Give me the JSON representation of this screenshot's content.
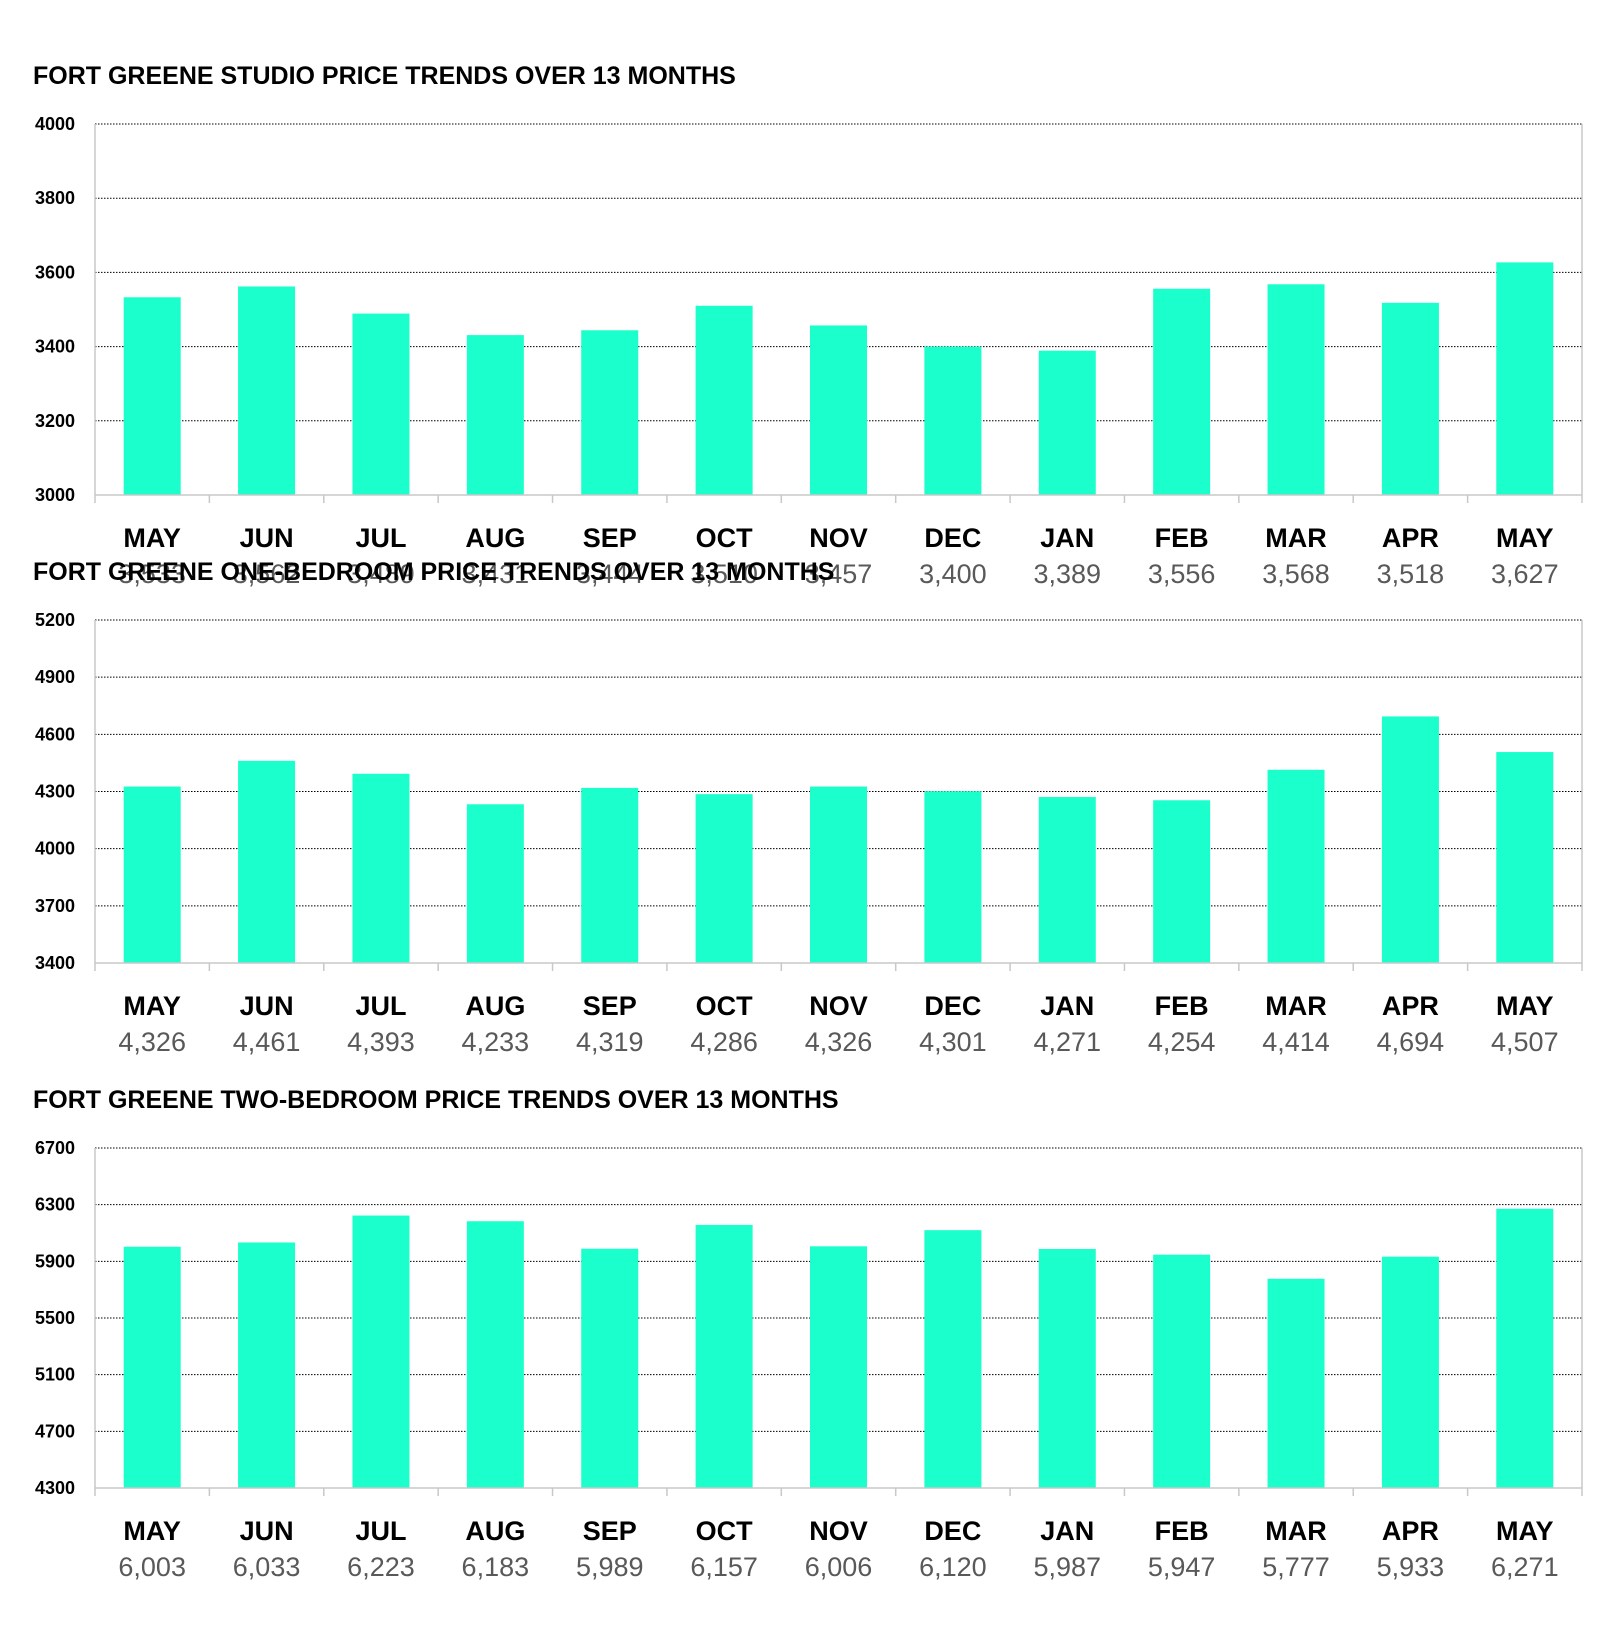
{
  "colors": {
    "bar": "#1affcc",
    "grid": "#000000",
    "axis": "#c8c8c8",
    "text": "#000000",
    "value_text": "#595959"
  },
  "chart_data": [
    {
      "type": "bar",
      "title": "FORT GREENE STUDIO PRICE TRENDS OVER 13 MONTHS",
      "categories": [
        "MAY",
        "JUN",
        "JUL",
        "AUG",
        "SEP",
        "OCT",
        "NOV",
        "DEC",
        "JAN",
        "FEB",
        "MAR",
        "APR",
        "MAY"
      ],
      "values": [
        3533,
        3562,
        3489,
        3431,
        3444,
        3510,
        3457,
        3400,
        3389,
        3556,
        3568,
        3518,
        3627
      ],
      "value_labels": [
        "3,533",
        "3,562",
        "3,489",
        "3,431",
        "3,444",
        "3,510",
        "3,457",
        "3,400",
        "3,389",
        "3,556",
        "3,568",
        "3,518",
        "3,627"
      ],
      "ylim": [
        3000,
        4000
      ],
      "yticks": [
        3000,
        3200,
        3400,
        3600,
        3800,
        4000
      ],
      "grid": true
    },
    {
      "type": "bar",
      "title": "FORT GREENE ONE-BEDROOM PRICE TRENDS OVER 13 MONTHS",
      "categories": [
        "MAY",
        "JUN",
        "JUL",
        "AUG",
        "SEP",
        "OCT",
        "NOV",
        "DEC",
        "JAN",
        "FEB",
        "MAR",
        "APR",
        "MAY"
      ],
      "values": [
        4326,
        4461,
        4393,
        4233,
        4319,
        4286,
        4326,
        4301,
        4271,
        4254,
        4414,
        4694,
        4507
      ],
      "value_labels": [
        "4,326",
        "4,461",
        "4,393",
        "4,233",
        "4,319",
        "4,286",
        "4,326",
        "4,301",
        "4,271",
        "4,254",
        "4,414",
        "4,694",
        "4,507"
      ],
      "ylim": [
        3400,
        5200
      ],
      "yticks": [
        3400,
        3700,
        4000,
        4300,
        4600,
        4900,
        5200
      ],
      "grid": true
    },
    {
      "type": "bar",
      "title": "FORT GREENE TWO-BEDROOM PRICE TRENDS OVER 13 MONTHS",
      "categories": [
        "MAY",
        "JUN",
        "JUL",
        "AUG",
        "SEP",
        "OCT",
        "NOV",
        "DEC",
        "JAN",
        "FEB",
        "MAR",
        "APR",
        "MAY"
      ],
      "values": [
        6003,
        6033,
        6223,
        6183,
        5989,
        6157,
        6006,
        6120,
        5987,
        5947,
        5777,
        5933,
        6271
      ],
      "value_labels": [
        "6,003",
        "6,033",
        "6,223",
        "6,183",
        "5,989",
        "6,157",
        "6,006",
        "6,120",
        "5,987",
        "5,947",
        "5,777",
        "5,933",
        "6,271"
      ],
      "ylim": [
        4300,
        6700
      ],
      "yticks": [
        4300,
        4700,
        5100,
        5500,
        5900,
        6300,
        6700
      ],
      "grid": true
    }
  ]
}
